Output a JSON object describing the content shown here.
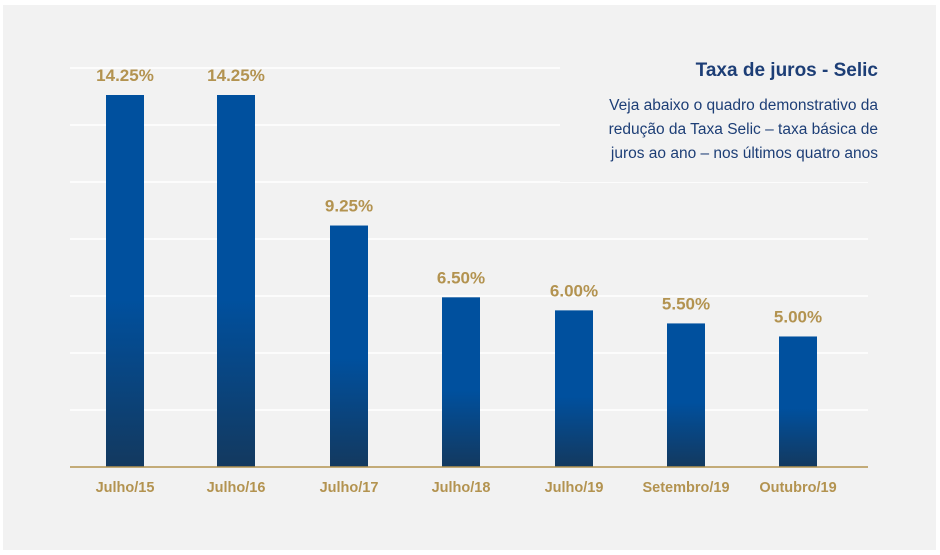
{
  "chart_data": {
    "type": "bar",
    "categories": [
      "Julho/15",
      "Julho/16",
      "Julho/17",
      "Julho/18",
      "Julho/19",
      "Setembro/19",
      "Outubro/19"
    ],
    "values": [
      14.25,
      14.25,
      9.25,
      6.5,
      6.0,
      5.5,
      5.0
    ],
    "data_labels": [
      "14.25%",
      "14.25%",
      "9.25%",
      "6.50%",
      "6.00%",
      "5.50%",
      "5.00%"
    ],
    "title": "Taxa de juros - Selic",
    "xlabel": "",
    "ylabel": "",
    "ylim": [
      0,
      14.25
    ],
    "grid": true,
    "colors": {
      "bar_top": "#00509e",
      "bar_bottom": "#13395f",
      "label": "#b39350",
      "title": "#1d3e76",
      "grid": "#ffffff",
      "axis": "#b39350"
    }
  },
  "description_lines": [
    "Veja abaixo o quadro demonstrativo da",
    "redução da Taxa Selic – taxa básica de",
    "juros ao ano – nos últimos quatro anos"
  ]
}
